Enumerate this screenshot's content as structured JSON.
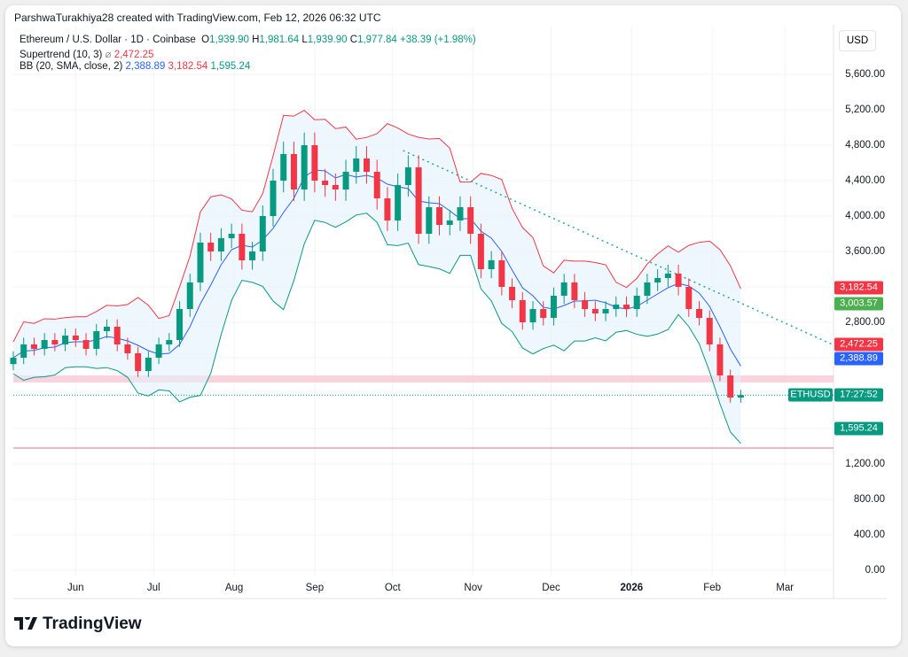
{
  "credit": "ParshwaTurakhiya28 created with TradingView.com, Feb 12, 2026 06:32 UTC",
  "symbol": "Ethereum / U.S. Dollar · 1D · Coinbase",
  "ohlc": {
    "o_label": "O",
    "o": "1,939.90",
    "h_label": "H",
    "h": "1,981.64",
    "l_label": "L",
    "l": "1,939.90",
    "c_label": "C",
    "c": "1,977.84",
    "change": "+38.39 (+1.98%)"
  },
  "supertrend": {
    "label": "Supertrend (10, 3)",
    "icon": "⌀",
    "value": "2,472.25"
  },
  "bb": {
    "label": "BB (20, SMA, close, 2)",
    "basis": "2,388.89",
    "upper": "3,182.54",
    "lower": "1,595.24"
  },
  "currency": "USD",
  "price_tags": {
    "bb_upper": "3,182.54",
    "st_green": "3,003.57",
    "supertrend": "2,472.25",
    "bb_basis": "2,388.89",
    "symbol": "ETHUSD",
    "countdown": "17:27:52",
    "bb_lower": "1,595.24"
  },
  "colors": {
    "up": "#089981",
    "down": "#f23645",
    "basis": "#2962ff",
    "st_green": "#4caf50"
  },
  "brand": "TradingView",
  "chart_data": {
    "type": "candlestick",
    "title": "Ethereum / U.S. Dollar · 1D · Coinbase",
    "ylim": [
      0,
      5600
    ],
    "yticks": [
      "5,600.00",
      "5,200.00",
      "4,800.00",
      "4,400.00",
      "4,000.00",
      "3,600.00",
      "2,800.00",
      "1,200.00",
      "800.00",
      "400.00",
      "0.00"
    ],
    "ytick_values": [
      5600,
      5200,
      4800,
      4400,
      4000,
      3600,
      2800,
      1200,
      800,
      400,
      0
    ],
    "xticks": [
      {
        "label": "Jun",
        "day": 24
      },
      {
        "label": "Jul",
        "day": 54
      },
      {
        "label": "Aug",
        "day": 85
      },
      {
        "label": "Sep",
        "day": 116
      },
      {
        "label": "Oct",
        "day": 146
      },
      {
        "label": "Nov",
        "day": 177
      },
      {
        "label": "Dec",
        "day": 207
      },
      {
        "label": "2026",
        "day": 238
      },
      {
        "label": "Feb",
        "day": 269
      },
      {
        "label": "Mar",
        "day": 297
      }
    ],
    "step_days": 4,
    "closes": [
      2400,
      2550,
      2500,
      2600,
      2550,
      2650,
      2600,
      2500,
      2700,
      2750,
      2550,
      2450,
      2250,
      2400,
      2550,
      2600,
      2950,
      3250,
      3700,
      3600,
      3750,
      3800,
      3500,
      3600,
      4000,
      4400,
      4700,
      4300,
      4800,
      4400,
      4350,
      4300,
      4500,
      4650,
      4500,
      4200,
      3950,
      4350,
      4550,
      3800,
      4100,
      3900,
      3950,
      4100,
      3800,
      3400,
      3500,
      3200,
      3050,
      2800,
      2950,
      2850,
      3100,
      3250,
      3050,
      2950,
      2900,
      2950,
      3000,
      2950,
      3100,
      3250,
      3300,
      3350,
      3200,
      2950,
      2850,
      2550,
      2200,
      1950,
      1978
    ],
    "support_zone": [
      2120,
      2200
    ],
    "horizontal_line": 1380,
    "trendline": [
      {
        "day": 150,
        "price": 4740
      },
      {
        "day": 316,
        "price": 2540
      }
    ]
  }
}
